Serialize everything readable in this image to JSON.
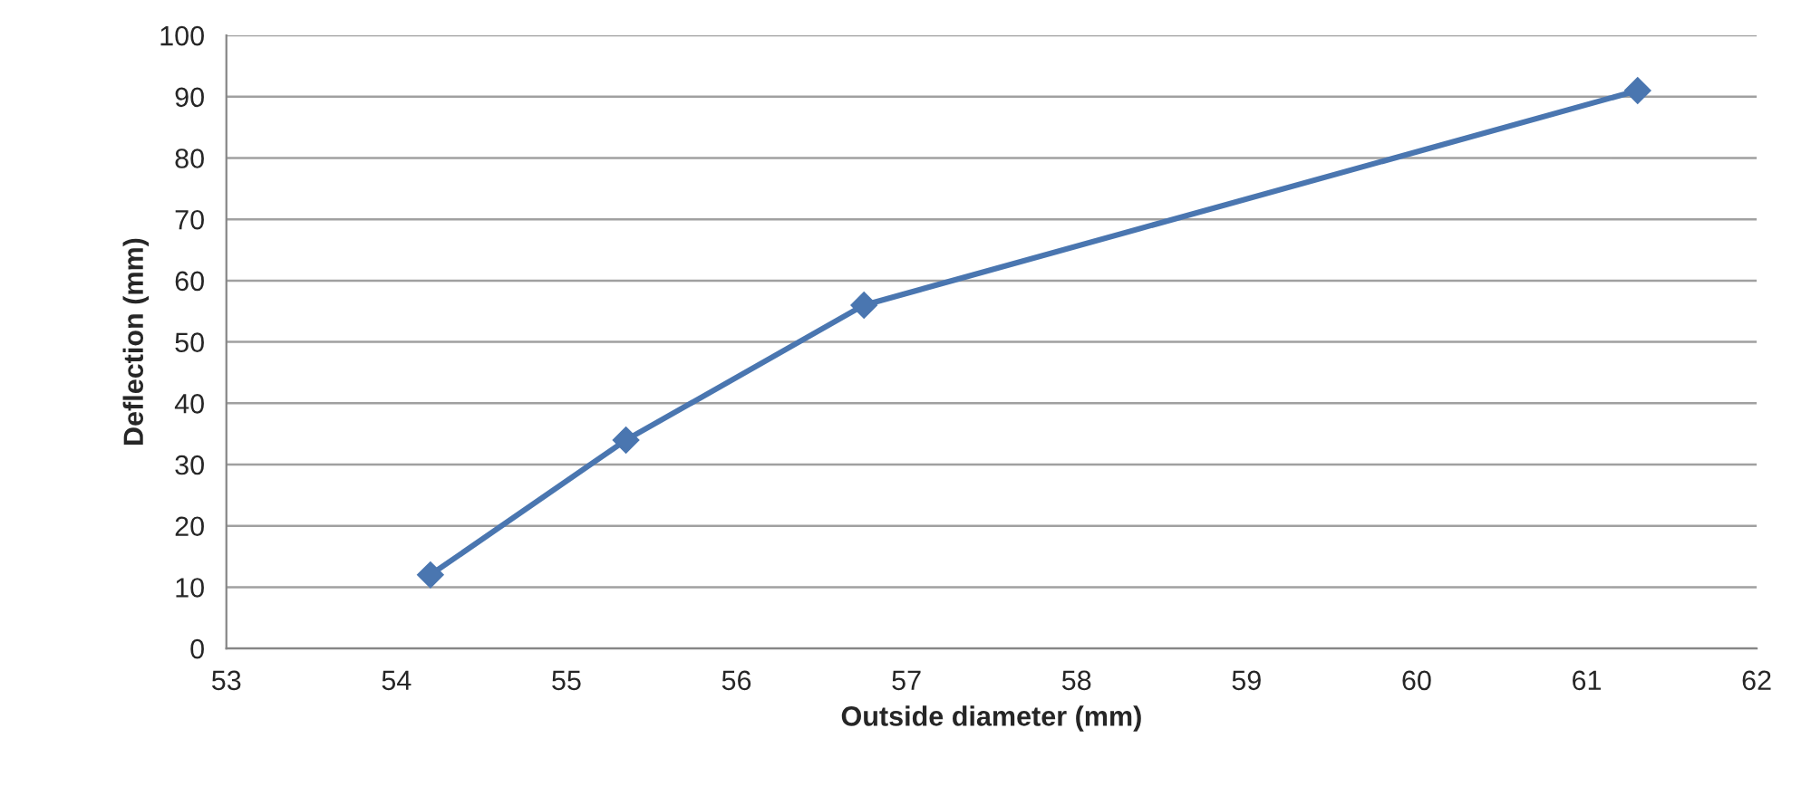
{
  "chart_data": {
    "type": "line",
    "xlabel": "Outside diameter (mm)",
    "ylabel": "Deflection (mm)",
    "x": [
      54.2,
      55.35,
      56.75,
      61.3
    ],
    "series": [
      {
        "color": "#4a76b0",
        "values": [
          12,
          34,
          56,
          91
        ]
      }
    ],
    "xlim": [
      53,
      62
    ],
    "xticks": [
      53,
      54,
      55,
      56,
      57,
      58,
      59,
      60,
      61,
      62
    ],
    "ylim": [
      0,
      100
    ],
    "yticks": [
      0,
      10,
      20,
      30,
      40,
      50,
      60,
      70,
      80,
      90,
      100
    ],
    "grid": "y",
    "marker": "diamond",
    "line_style": "solid"
  }
}
